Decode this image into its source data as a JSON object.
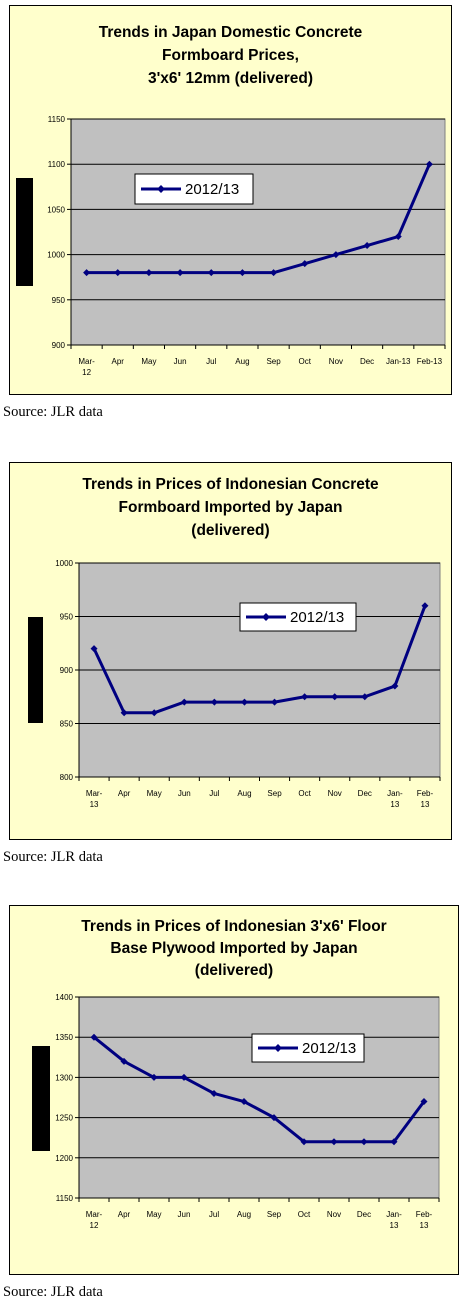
{
  "chart_data": [
    {
      "type": "line",
      "title_lines": [
        "Trends in Japan Domestic Concrete",
        "Formboard Prices,",
        "3'x6' 12mm (delivered)"
      ],
      "categories": [
        [
          "Mar-",
          "12"
        ],
        [
          "Apr"
        ],
        [
          "May"
        ],
        [
          "Jun"
        ],
        [
          "Jul"
        ],
        [
          "Aug"
        ],
        [
          "Sep"
        ],
        [
          "Oct"
        ],
        [
          "Nov"
        ],
        [
          "Dec"
        ],
        [
          "Jan-13"
        ],
        [
          "Feb-13"
        ]
      ],
      "series": [
        {
          "name": "2012/13",
          "values": [
            980,
            980,
            980,
            980,
            980,
            980,
            980,
            990,
            1000,
            1010,
            1020,
            1100
          ]
        }
      ],
      "ylim": [
        900,
        1150
      ],
      "yticks": [
        900,
        950,
        1000,
        1050,
        1100,
        1150
      ],
      "grid": true,
      "legend": "top-left",
      "line_color": "#000080",
      "plot_color": "#c0c0c0",
      "background_color": "#ffffcc",
      "source": "Source: JLR data"
    },
    {
      "type": "line",
      "title_lines": [
        "Trends in Prices of Indonesian Concrete",
        "Formboard Imported by Japan",
        "(delivered)"
      ],
      "categories": [
        [
          "Mar-",
          "13"
        ],
        [
          "Apr"
        ],
        [
          "May"
        ],
        [
          "Jun"
        ],
        [
          "Jul"
        ],
        [
          "Aug"
        ],
        [
          "Sep"
        ],
        [
          "Oct"
        ],
        [
          "Nov"
        ],
        [
          "Dec"
        ],
        [
          "Jan-",
          "13"
        ],
        [
          "Feb-",
          "13"
        ]
      ],
      "series": [
        {
          "name": "2012/13",
          "values": [
            920,
            860,
            860,
            870,
            870,
            870,
            870,
            875,
            875,
            875,
            885,
            960
          ]
        }
      ],
      "ylim": [
        800,
        1000
      ],
      "yticks": [
        800,
        850,
        900,
        950,
        1000
      ],
      "grid": true,
      "legend": "top-right",
      "line_color": "#000080",
      "plot_color": "#c0c0c0",
      "background_color": "#ffffcc",
      "source": "Source: JLR data"
    },
    {
      "type": "line",
      "title_lines": [
        "Trends in Prices of Indonesian 3'x6' Floor",
        "Base Plywood Imported by Japan",
        "(delivered)"
      ],
      "categories": [
        [
          "Mar-",
          "12"
        ],
        [
          "Apr"
        ],
        [
          "May"
        ],
        [
          "Jun"
        ],
        [
          "Jul"
        ],
        [
          "Aug"
        ],
        [
          "Sep"
        ],
        [
          "Oct"
        ],
        [
          "Nov"
        ],
        [
          "Dec"
        ],
        [
          "Jan-",
          "13"
        ],
        [
          "Feb-",
          "13"
        ]
      ],
      "series": [
        {
          "name": "2012/13",
          "values": [
            1350,
            1320,
            1300,
            1300,
            1280,
            1270,
            1250,
            1220,
            1220,
            1220,
            1220,
            1270
          ]
        }
      ],
      "ylim": [
        1150,
        1400
      ],
      "yticks": [
        1150,
        1200,
        1250,
        1300,
        1350,
        1400
      ],
      "grid": true,
      "legend": "top-right",
      "line_color": "#000080",
      "plot_color": "#c0c0c0",
      "background_color": "#ffffcc",
      "source": "Source: JLR data"
    }
  ]
}
